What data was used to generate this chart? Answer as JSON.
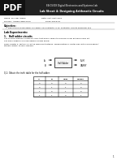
{
  "bg_color": "#ffffff",
  "header_bar_color": "#222222",
  "pdf_bg": "#111111",
  "header_line1": "EE/CS303 Digital Electronics and Systems Lab",
  "header_line2": "Lab Sheet 4: Designing Arithmetic Circuits",
  "student_line1": "Name: M.F. Bin Adiera                          Date: 21st Sept 2021",
  "student_line2": "Roll No.: ARGEN IMENTXXX                        Class: DECE-1a",
  "objective_title": "Objective:",
  "objective_bullet": "•  Simulations of half adder, full adder, half subtractor & full subtractor circuits using Isim and",
  "lab_exp_title": "Lab Experiments:",
  "exp1_title": "1.   Half adder circuits",
  "exp1_desc1": "The circuit is simplest arithmetic logic that binary values to produce a sum bit and a carry bit.",
  "exp1_desc2": "The block diagram of a half adder is shown below.",
  "exp1_desc3": "Refer chapter 3, section 3.1 of the reference textbook: Fundamentals of digital logic with verilog design;",
  "exp1_desc4": "stephen brown, zvonko vranesic.",
  "q1_text": "Q.1: Obtain the truth table for the half adder.",
  "table_headers": [
    "A",
    "B",
    "SUM",
    "CARRY"
  ],
  "table_data": [
    [
      "0",
      "0",
      "0",
      "0"
    ],
    [
      "0",
      "1",
      "1",
      "0"
    ],
    [
      "1",
      "0",
      "1",
      "0"
    ],
    [
      "1",
      "1",
      "0",
      "1"
    ]
  ],
  "box_label": "Half Adder",
  "input_a": "A",
  "input_b": "B",
  "output_sum": "SUM",
  "output_carry": "CARRY",
  "page_number": "1"
}
